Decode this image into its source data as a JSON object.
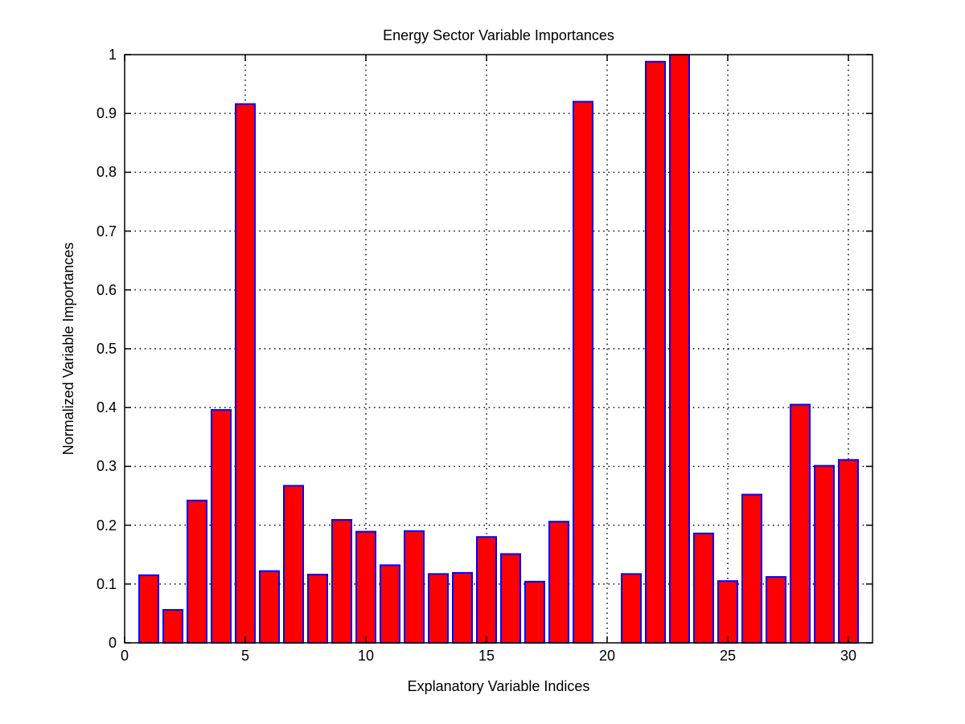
{
  "chart_data": {
    "type": "bar",
    "title": "Energy Sector Variable Importances",
    "xlabel": "Explanatory Variable Indices",
    "ylabel": "Normalized Variable Importances",
    "x": [
      1,
      2,
      3,
      4,
      5,
      6,
      7,
      8,
      9,
      10,
      11,
      12,
      13,
      14,
      15,
      16,
      17,
      18,
      19,
      20,
      21,
      22,
      23,
      24,
      25,
      26,
      27,
      28,
      29,
      30
    ],
    "values": [
      0.115,
      0.056,
      0.242,
      0.396,
      0.916,
      0.122,
      0.267,
      0.116,
      0.209,
      0.189,
      0.132,
      0.19,
      0.117,
      0.119,
      0.18,
      0.151,
      0.104,
      0.206,
      0.92,
      0,
      0.117,
      0.988,
      1.0,
      0.186,
      0.105,
      0.252,
      0.112,
      0.405,
      0.301,
      0.311
    ],
    "xlim": [
      0,
      31
    ],
    "ylim": [
      0,
      1
    ],
    "xticks": [
      0,
      5,
      10,
      15,
      20,
      25,
      30
    ],
    "xtick_labels": [
      "0",
      "5",
      "10",
      "15",
      "20",
      "25",
      "30"
    ],
    "yticks": [
      0,
      0.1,
      0.2,
      0.3,
      0.4,
      0.5,
      0.6,
      0.7,
      0.8,
      0.9,
      1
    ],
    "ytick_labels": [
      "0",
      "0.1",
      "0.2",
      "0.3",
      "0.4",
      "0.5",
      "0.6",
      "0.7",
      "0.8",
      "0.9",
      "1"
    ],
    "grid": true,
    "legend": "none",
    "bar_fill": "#ff0000",
    "bar_edge": "#0000ff",
    "axis_color": "#000000",
    "grid_color": "#000000",
    "background": "#ffffff"
  }
}
